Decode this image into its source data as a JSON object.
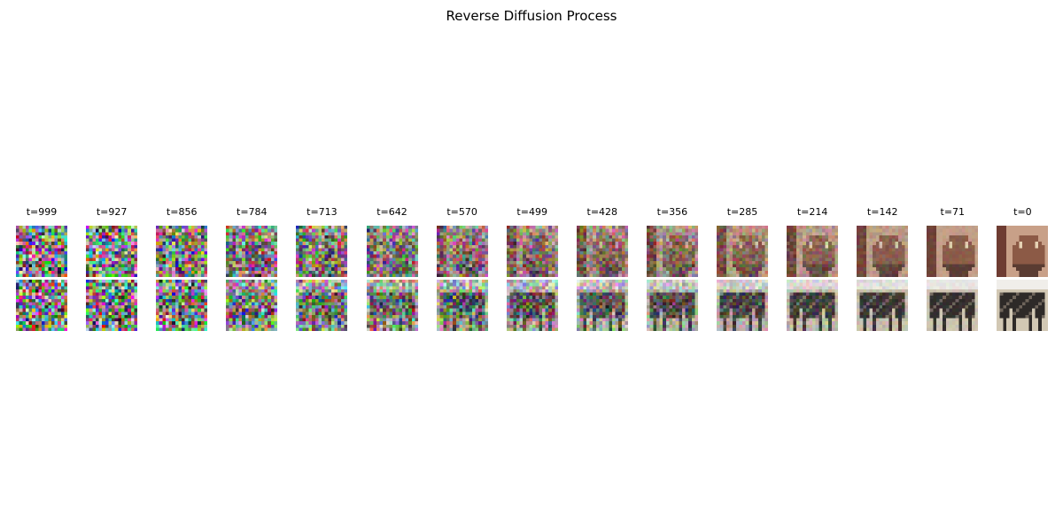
{
  "title": "Reverse Diffusion Process",
  "steps": [
    {
      "t_label": "t=999",
      "noise_level": 1.0
    },
    {
      "t_label": "t=927",
      "noise_level": 0.93
    },
    {
      "t_label": "t=856",
      "noise_level": 0.86
    },
    {
      "t_label": "t=784",
      "noise_level": 0.78
    },
    {
      "t_label": "t=713",
      "noise_level": 0.71
    },
    {
      "t_label": "t=642",
      "noise_level": 0.64
    },
    {
      "t_label": "t=570",
      "noise_level": 0.57
    },
    {
      "t_label": "t=499",
      "noise_level": 0.5
    },
    {
      "t_label": "t=428",
      "noise_level": 0.43
    },
    {
      "t_label": "t=356",
      "noise_level": 0.36
    },
    {
      "t_label": "t=285",
      "noise_level": 0.29
    },
    {
      "t_label": "t=214",
      "noise_level": 0.21
    },
    {
      "t_label": "t=142",
      "noise_level": 0.14
    },
    {
      "t_label": "t=71",
      "noise_level": 0.07
    },
    {
      "t_label": "t=0",
      "noise_level": 0.0
    }
  ],
  "samples": [
    {
      "subject": "owl-icon",
      "palette": [
        "#8c5a46",
        "#c8a088",
        "#5a3c32"
      ]
    },
    {
      "subject": "dark-animal-icon",
      "palette": [
        "#2e2a28",
        "#d2c8b4",
        "#6e645a"
      ]
    }
  ]
}
